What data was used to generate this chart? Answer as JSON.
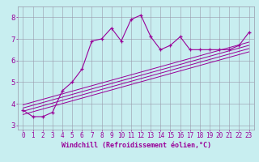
{
  "background_color": "#c8eef0",
  "line_color": "#990099",
  "grid_color": "#9999aa",
  "xlim": [
    -0.5,
    23.5
  ],
  "ylim": [
    2.8,
    8.5
  ],
  "xticks": [
    0,
    1,
    2,
    3,
    4,
    5,
    6,
    7,
    8,
    9,
    10,
    11,
    12,
    13,
    14,
    15,
    16,
    17,
    18,
    19,
    20,
    21,
    22,
    23
  ],
  "yticks": [
    3,
    4,
    5,
    6,
    7,
    8
  ],
  "main_series_x": [
    0,
    1,
    2,
    3,
    4,
    5,
    6,
    7,
    8,
    9,
    10,
    11,
    12,
    13,
    14,
    15,
    16,
    17,
    18,
    19,
    20,
    21,
    22,
    23
  ],
  "main_series_y": [
    3.7,
    3.4,
    3.4,
    3.6,
    4.6,
    5.0,
    5.6,
    6.9,
    7.0,
    7.5,
    6.9,
    7.9,
    8.1,
    7.1,
    6.5,
    6.7,
    7.1,
    6.5,
    6.5,
    6.5,
    6.5,
    6.5,
    6.7,
    7.3
  ],
  "diag_lines": [
    {
      "x": [
        0,
        23
      ],
      "y": [
        3.5,
        6.4
      ]
    },
    {
      "x": [
        0,
        23
      ],
      "y": [
        3.65,
        6.55
      ]
    },
    {
      "x": [
        0,
        23
      ],
      "y": [
        3.8,
        6.7
      ]
    },
    {
      "x": [
        0,
        23
      ],
      "y": [
        3.95,
        6.85
      ]
    }
  ],
  "xlabel": "Windchill (Refroidissement éolien,°C)",
  "xlabel_fontsize": 6.0,
  "tick_fontsize": 5.5,
  "ytick_fontsize": 6.5
}
